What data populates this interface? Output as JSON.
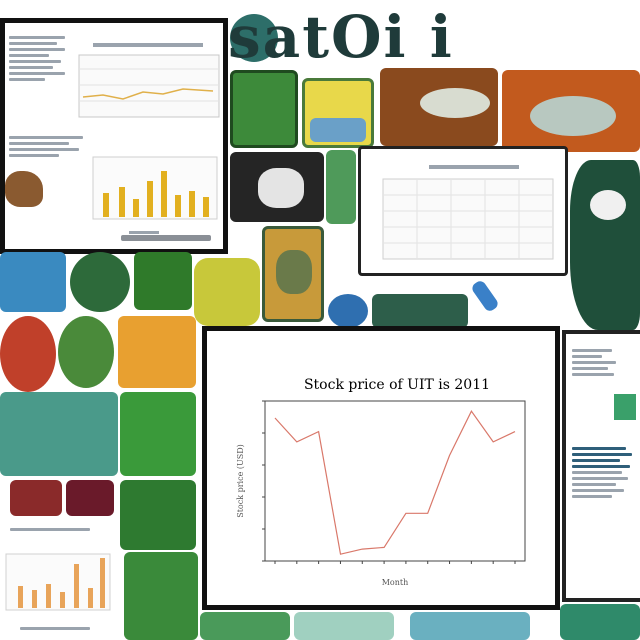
{
  "banner": {
    "text": "satOi i"
  },
  "main_chart": {
    "title": "Stock price of UIT is 2011",
    "ylabel": "Stock price (USD)",
    "xlabel": "Month"
  },
  "chart_data": {
    "type": "line",
    "x": [
      1,
      2,
      3,
      4,
      5,
      6,
      7,
      8,
      9,
      10,
      11,
      12
    ],
    "values": [
      9.2,
      7.8,
      8.4,
      1.2,
      1.5,
      1.6,
      3.6,
      3.6,
      7.0,
      9.6,
      7.8,
      8.4
    ],
    "ylim": [
      0.8,
      10.2
    ],
    "title": "Stock price of UIT is 2011",
    "xlabel": "Month",
    "ylabel": "Stock price (USD)",
    "color": "#d9786a",
    "grid": false
  },
  "colors": {
    "frame": "#111111",
    "teal": "#2d6e69",
    "green": "#3d8a3a",
    "orange": "#c25a1e",
    "bar_gold": "#e2b020"
  }
}
